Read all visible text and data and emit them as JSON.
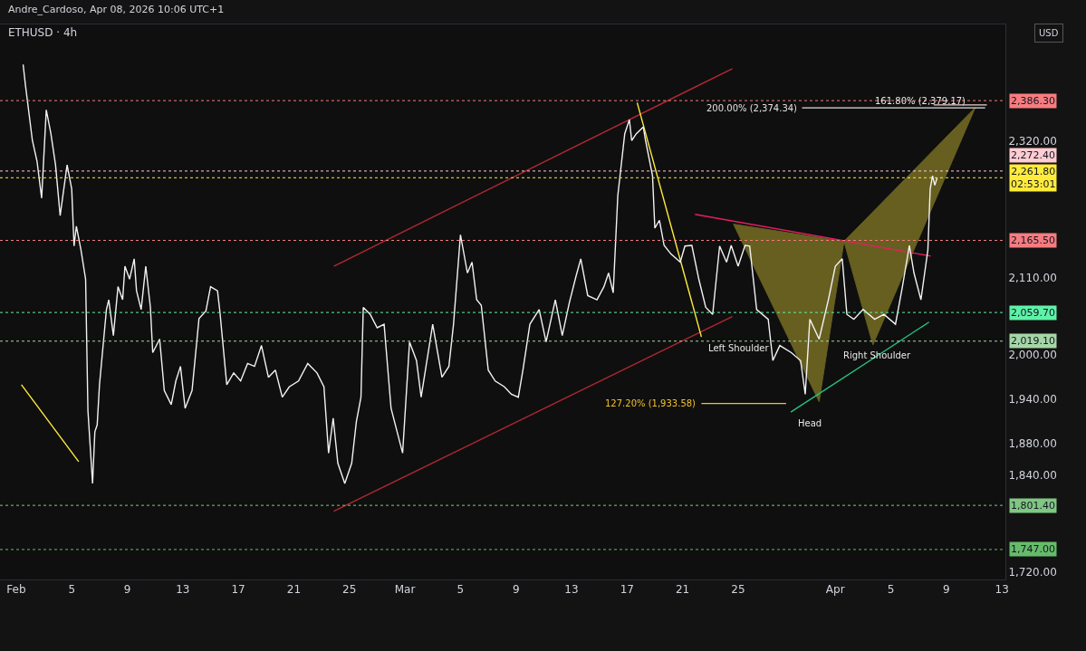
{
  "chart_data": {
    "type": "line",
    "title": "ETHUSD · 4h",
    "annotations": [
      "Andre_Cardoso, Apr 08, 2026 10:06 UTC+1",
      "USD",
      {
        "text": "127.20% (1,933.58)",
        "x": "2026-03-22T08:30",
        "y": 1933.58
      },
      {
        "text": "200.00% (2,374.34)",
        "x": "2026-03-29T14:30",
        "y": 2374.34
      },
      {
        "text": "161.80% (2,379.17)",
        "x": "2026-04-07T02:30",
        "y": 2379.17
      },
      {
        "text": "Left Shoulder",
        "x": "2026-03-22T08:30",
        "y": 2025
      },
      {
        "text": "Head",
        "x": "2026-03-28T19:00",
        "y": 1922
      },
      {
        "text": "Right Shoulder",
        "x": "2026-04-04T00:30",
        "y": 1994
      }
    ],
    "log": true,
    "xlim": [
      "2026-01-30T20:00",
      "2026-04-13T06:00"
    ],
    "xticks": [
      {
        "value": "2026-02-01",
        "label": "Feb"
      },
      {
        "value": "2026-02-05",
        "label": "5"
      },
      {
        "value": "2026-02-09",
        "label": "9"
      },
      {
        "value": "2026-02-13",
        "label": "13"
      },
      {
        "value": "2026-02-17",
        "label": "17"
      },
      {
        "value": "2026-02-21",
        "label": "21"
      },
      {
        "value": "2026-02-25",
        "label": "25"
      },
      {
        "value": "2026-03-01",
        "label": "Mar"
      },
      {
        "value": "2026-03-05",
        "label": "5"
      },
      {
        "value": "2026-03-09",
        "label": "9"
      },
      {
        "value": "2026-03-13",
        "label": "13"
      },
      {
        "value": "2026-03-17",
        "label": "17"
      },
      {
        "value": "2026-03-21",
        "label": "21"
      },
      {
        "value": "2026-03-25",
        "label": "25"
      },
      {
        "value": "2026-04-01",
        "label": "Apr"
      },
      {
        "value": "2026-04-05",
        "label": "5"
      },
      {
        "value": "2026-04-09",
        "label": "9"
      },
      {
        "value": "2026-04-13",
        "label": "13"
      }
    ],
    "ylim": [
      1711,
      2516
    ],
    "yticks": [
      {
        "value": 1720,
        "label": "1,720.00"
      },
      {
        "value": 1840,
        "label": "1,840.00"
      },
      {
        "value": 1880,
        "label": "1,880.00"
      },
      {
        "value": 1940,
        "label": "1,940.00"
      },
      {
        "value": 2000,
        "label": "2,000.00"
      },
      {
        "value": 2110,
        "label": "2,110.00"
      },
      {
        "value": 2320,
        "label": "2,320.00"
      }
    ],
    "ref_lines": [
      {
        "axis": "y",
        "value": 2386.3,
        "label": "2,386.30",
        "color": "#f77c80",
        "line_style": "dotted"
      },
      {
        "axis": "y",
        "value": 2272.4,
        "label": "2,272.40",
        "color": "#ffcdd2",
        "line_style": "dotted"
      },
      {
        "axis": "y",
        "value": 2261.8,
        "label": "2,261.80\n02:53:01",
        "color": "#ffeb3b",
        "line_style": "dotted"
      },
      {
        "axis": "y",
        "value": 2165.5,
        "label": "2,165.50",
        "color": "#f77c80",
        "line_style": "dotted"
      },
      {
        "axis": "y",
        "value": 2059.7,
        "label": "2,059.70",
        "color": "#5ef2a8",
        "line_style": "dotted"
      },
      {
        "axis": "y",
        "value": 2019.1,
        "label": "2,019.10",
        "color": "#a5d6a7",
        "line_style": "dotted"
      },
      {
        "axis": "y",
        "value": 1801.4,
        "label": "1,801.40",
        "color": "#81c784",
        "line_style": "dotted"
      },
      {
        "axis": "y",
        "value": 1747.0,
        "label": "1,747.00",
        "color": "#66bb6a",
        "line_style": "dotted"
      }
    ],
    "series": [
      {
        "type": "area",
        "color": "#7d7425",
        "x": [
          "2026-03-24T16:00",
          "2026-03-30T20:00",
          "2026-04-01T15:00",
          "2026-03-24T16:00"
        ],
        "values": [
          2190,
          1936,
          2164,
          2190
        ]
      },
      {
        "type": "area",
        "color": "#7d7425",
        "x": [
          "2026-04-01T15:00",
          "2026-04-03T17:00",
          "2026-04-11T02:00",
          "2026-04-01T15:00"
        ],
        "values": [
          2164,
          2014,
          2375,
          2164
        ]
      },
      {
        "type": "line",
        "color": "#b22833",
        "x": [
          "2026-02-23T21:00",
          "2026-03-24T14:00"
        ],
        "values": [
          2127,
          2440
        ]
      },
      {
        "type": "line",
        "color": "#b22833",
        "x": [
          "2026-02-23T21:00",
          "2026-03-24T14:00"
        ],
        "values": [
          1794,
          2054
        ]
      },
      {
        "type": "line",
        "color": "#ffeb3b",
        "x": [
          "2026-02-01T09:00",
          "2026-02-05T12:00"
        ],
        "values": [
          1959,
          1857
        ]
      },
      {
        "type": "line",
        "color": "#ffeb3b",
        "x": [
          "2026-03-17T17:30",
          "2026-03-22T08:30"
        ],
        "values": [
          2383,
          2025
        ]
      },
      {
        "type": "line",
        "color": "#e91e63",
        "x": [
          "2026-03-21T21:30",
          "2026-04-07T21:00"
        ],
        "values": [
          2205,
          2142
        ]
      },
      {
        "type": "line",
        "color": "#26c281",
        "x": [
          "2026-03-28T19:00",
          "2026-04-07T18:00"
        ],
        "values": [
          1922,
          2046
        ]
      },
      {
        "type": "line",
        "color": "#f2c12e",
        "x": [
          "2026-03-22T08:30",
          "2026-03-28T11:00"
        ],
        "values": [
          1933.58,
          1933.58
        ]
      },
      {
        "type": "line",
        "color": "#e0e0e0",
        "x": [
          "2026-03-29T14:30",
          "2026-04-11T19:00"
        ],
        "values": [
          2374.34,
          2374.34
        ]
      },
      {
        "type": "line",
        "color": "#f0d0d0",
        "x": [
          "2026-04-08T02:00",
          "2026-04-11T22:00"
        ],
        "values": [
          2379.17,
          2379.17
        ]
      },
      {
        "color": "#f2f2f2",
        "x": [
          "2026-02-01T12:00",
          "2026-02-01T16:00",
          "2026-02-02T04:00",
          "2026-02-02T12:00",
          "2026-02-02T20:00",
          "2026-02-03T04:00",
          "2026-02-03T12:00",
          "2026-02-03T20:00",
          "2026-02-04T04:00",
          "2026-02-04T16:00",
          "2026-02-05T00:00",
          "2026-02-05T04:00",
          "2026-02-05T08:00",
          "2026-02-05T16:00",
          "2026-02-06T00:00",
          "2026-02-06T04:00",
          "2026-02-06T12:00",
          "2026-02-06T16:00",
          "2026-02-06T20:00",
          "2026-02-07T00:00",
          "2026-02-07T12:00",
          "2026-02-07T16:00",
          "2026-02-08T00:00",
          "2026-02-08T08:00",
          "2026-02-08T16:00",
          "2026-02-08T20:00",
          "2026-02-09T04:00",
          "2026-02-09T12:00",
          "2026-02-09T16:00",
          "2026-02-10T00:00",
          "2026-02-10T08:00",
          "2026-02-10T16:00",
          "2026-02-10T20:00",
          "2026-02-11T08:00",
          "2026-02-11T16:00",
          "2026-02-12T04:00",
          "2026-02-12T12:00",
          "2026-02-12T20:00",
          "2026-02-13T04:00",
          "2026-02-13T16:00",
          "2026-02-14T04:00",
          "2026-02-14T16:00",
          "2026-02-15T00:00",
          "2026-02-15T12:00",
          "2026-02-15T16:00",
          "2026-02-16T04:00",
          "2026-02-16T16:00",
          "2026-02-17T04:00",
          "2026-02-17T16:00",
          "2026-02-18T04:00",
          "2026-02-18T16:00",
          "2026-02-19T04:00",
          "2026-02-19T16:00",
          "2026-02-20T04:00",
          "2026-02-20T16:00",
          "2026-02-21T08:00",
          "2026-02-22T00:00",
          "2026-02-22T16:00",
          "2026-02-23T04:00",
          "2026-02-23T12:00",
          "2026-02-23T20:00",
          "2026-02-24T04:00",
          "2026-02-24T16:00",
          "2026-02-25T04:00",
          "2026-02-25T12:00",
          "2026-02-25T20:00",
          "2026-02-26T00:00",
          "2026-02-26T12:00",
          "2026-02-27T00:00",
          "2026-02-27T12:00",
          "2026-02-28T00:00",
          "2026-02-28T20:00",
          "2026-03-01T08:00",
          "2026-03-01T20:00",
          "2026-03-02T04:00",
          "2026-03-03T00:00",
          "2026-03-03T16:00",
          "2026-03-04T04:00",
          "2026-03-04T12:00",
          "2026-03-05T00:00",
          "2026-03-05T12:00",
          "2026-03-05T20:00",
          "2026-03-06T04:00",
          "2026-03-06T12:00",
          "2026-03-07T00:00",
          "2026-03-07T12:00",
          "2026-03-08T04:00",
          "2026-03-08T16:00",
          "2026-03-09T04:00",
          "2026-03-09T12:00",
          "2026-03-10T00:00",
          "2026-03-10T16:00",
          "2026-03-11T04:00",
          "2026-03-11T20:00",
          "2026-03-12T08:00",
          "2026-03-12T20:00",
          "2026-03-13T08:00",
          "2026-03-13T16:00",
          "2026-03-14T04:00",
          "2026-03-14T20:00",
          "2026-03-15T08:00",
          "2026-03-15T16:00",
          "2026-03-16T00:00",
          "2026-03-16T08:00",
          "2026-03-16T20:00",
          "2026-03-17T04:00",
          "2026-03-17T08:00",
          "2026-03-17T16:00",
          "2026-03-18T04:00",
          "2026-03-18T08:00",
          "2026-03-18T20:00",
          "2026-03-19T00:00",
          "2026-03-19T08:00",
          "2026-03-19T16:00",
          "2026-03-20T04:00",
          "2026-03-20T20:00",
          "2026-03-21T04:00",
          "2026-03-21T16:00",
          "2026-03-22T04:00",
          "2026-03-22T16:00",
          "2026-03-23T04:00",
          "2026-03-23T16:00",
          "2026-03-24T04:00",
          "2026-03-24T12:00",
          "2026-03-25T00:00",
          "2026-03-25T12:00",
          "2026-03-25T20:00",
          "2026-03-26T08:00",
          "2026-03-27T04:00",
          "2026-03-27T12:00",
          "2026-03-28T00:00",
          "2026-03-28T20:00",
          "2026-03-29T12:00",
          "2026-03-29T20:00",
          "2026-03-30T04:00",
          "2026-03-30T20:00",
          "2026-03-31T12:00",
          "2026-04-01T00:00",
          "2026-04-01T12:00",
          "2026-04-01T20:00",
          "2026-04-02T08:00",
          "2026-04-03T00:00",
          "2026-04-03T20:00",
          "2026-04-04T12:00",
          "2026-04-05T08:00",
          "2026-04-05T20:00",
          "2026-04-06T08:00",
          "2026-04-06T16:00",
          "2026-04-07T04:00",
          "2026-04-07T16:00",
          "2026-04-07T20:00",
          "2026-04-08T00:00",
          "2026-04-08T04:00",
          "2026-04-08T08:00"
        ],
        "values": [
          2447,
          2412,
          2321,
          2288,
          2230,
          2371,
          2332,
          2282,
          2203,
          2282,
          2244,
          2157,
          2187,
          2151,
          2108,
          1924,
          1829,
          1896,
          1905,
          1959,
          2064,
          2078,
          2027,
          2097,
          2078,
          2127,
          2108,
          2138,
          2091,
          2064,
          2127,
          2067,
          2003,
          2022,
          1951,
          1932,
          1964,
          1984,
          1927,
          1951,
          2051,
          2062,
          2097,
          2091,
          2062,
          1959,
          1975,
          1964,
          1988,
          1984,
          2013,
          1969,
          1979,
          1942,
          1956,
          1964,
          1988,
          1975,
          1956,
          1868,
          1914,
          1855,
          1829,
          1855,
          1909,
          1942,
          2067,
          2057,
          2038,
          2043,
          1927,
          1868,
          2018,
          1992,
          1942,
          2043,
          1969,
          1984,
          2043,
          2174,
          2117,
          2133,
          2078,
          2070,
          1979,
          1964,
          1956,
          1946,
          1942,
          1979,
          2043,
          2064,
          2018,
          2078,
          2027,
          2073,
          2113,
          2138,
          2084,
          2078,
          2097,
          2117,
          2088,
          2234,
          2332,
          2355,
          2321,
          2332,
          2343,
          2321,
          2265,
          2184,
          2196,
          2158,
          2145,
          2133,
          2157,
          2158,
          2108,
          2067,
          2057,
          2157,
          2133,
          2158,
          2127,
          2158,
          2157,
          2064,
          2050,
          1992,
          2013,
          2003,
          1992,
          1946,
          2050,
          2022,
          2078,
          2127,
          2138,
          2057,
          2050,
          2064,
          2050,
          2057,
          2043,
          2097,
          2158,
          2117,
          2078,
          2151,
          2244,
          2265,
          2250,
          2261.8
        ]
      }
    ]
  }
}
